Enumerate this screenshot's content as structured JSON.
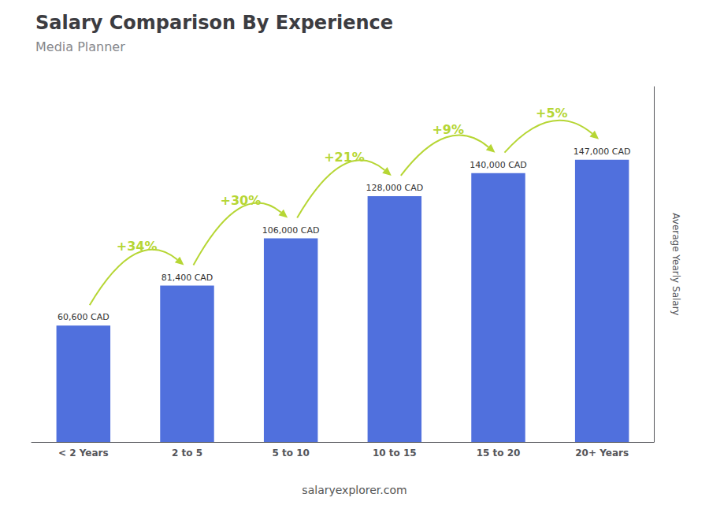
{
  "chart_data": {
    "type": "bar",
    "title": "Salary Comparison By Experience",
    "subtitle": "Media Planner",
    "categories": [
      "< 2 Years",
      "2 to 5",
      "5 to 10",
      "10 to 15",
      "15 to 20",
      "20+ Years"
    ],
    "values": [
      60600,
      81400,
      106000,
      128000,
      140000,
      147000
    ],
    "value_labels": [
      "60,600 CAD",
      "81,400 CAD",
      "106,000 CAD",
      "128,000 CAD",
      "140,000 CAD",
      "147,000 CAD"
    ],
    "data_labels": true,
    "ylabel": "Average Yearly Salary",
    "ylim": [
      0,
      185000
    ],
    "tick_labels": "x",
    "grid": false,
    "annotations": [
      {
        "text": "+34%",
        "from": "< 2 Years",
        "to": "2 to 5"
      },
      {
        "text": "+30%",
        "from": "2 to 5",
        "to": "5 to 10"
      },
      {
        "text": "+21%",
        "from": "5 to 10",
        "to": "10 to 15"
      },
      {
        "text": "+9%",
        "from": "10 to 15",
        "to": "15 to 20"
      },
      {
        "text": "+5%",
        "from": "15 to 20",
        "to": "20+ Years"
      }
    ],
    "footer": "salaryexplorer.com"
  }
}
